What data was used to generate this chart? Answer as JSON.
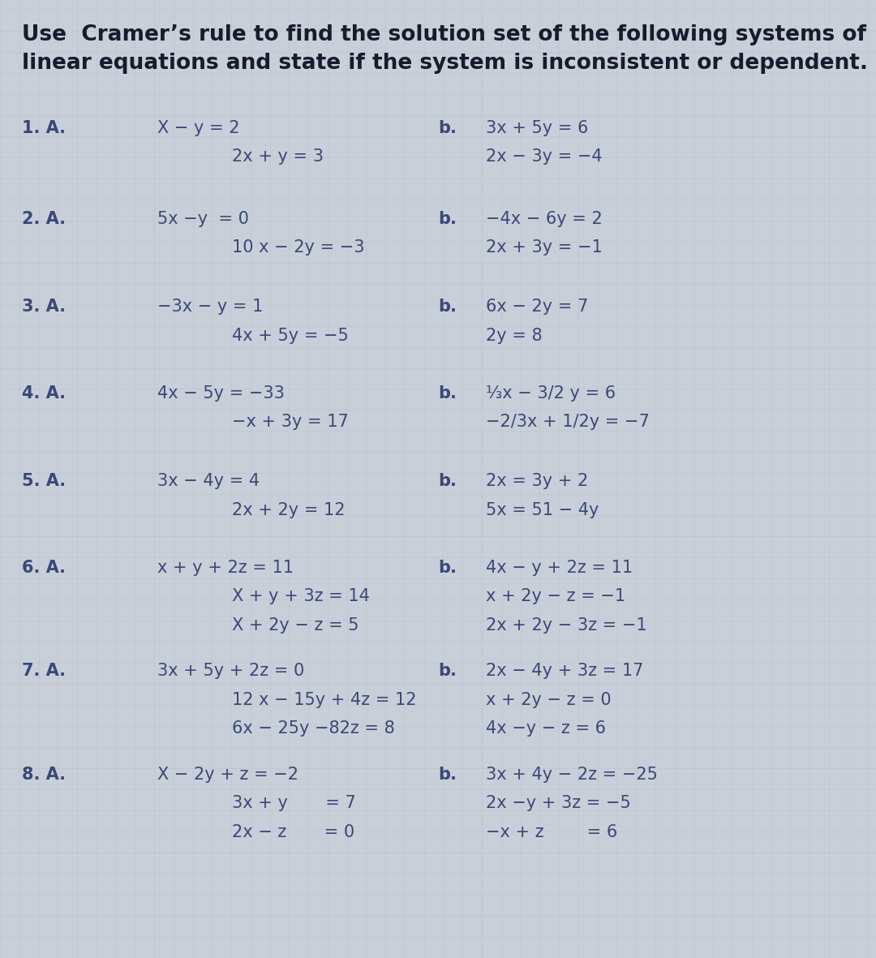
{
  "title_line1": "Use  Cramer’s rule to find the solution set of the following systems of",
  "title_line2": "linear equations and state if the system is inconsistent or dependent.",
  "background_color": "#c8cfd8",
  "grid_color": "#b8bfc8",
  "text_color": "#3a4878",
  "title_color": "#1a1a2e",
  "font_size_title": 19,
  "font_size_body": 15,
  "problems": [
    {
      "number": "1. A.",
      "left_lines": [
        "X − y = 2",
        "2x + y = 3"
      ],
      "right_label": "b.",
      "right_lines": [
        "3x + 5y = 6",
        "2x − 3y = −4"
      ]
    },
    {
      "number": "2. A.",
      "left_lines": [
        "5x −y  = 0",
        "10 x − 2y = −3"
      ],
      "right_label": "b.",
      "right_lines": [
        "−4x − 6y = 2",
        "2x + 3y = −1"
      ]
    },
    {
      "number": "3. A.",
      "left_lines": [
        "−3x − y = 1",
        "4x + 5y = −5"
      ],
      "right_label": "b.",
      "right_lines": [
        "6x − 2y = 7",
        "2y = 8"
      ]
    },
    {
      "number": "4. A.",
      "left_lines": [
        "4x − 5y = −33",
        "−x + 3y = 17"
      ],
      "right_label": "b.",
      "right_lines": [
        "⅓x − 3/2 y = 6",
        "−2/3x + 1/2y = −7"
      ]
    },
    {
      "number": "5. A.",
      "left_lines": [
        "3x − 4y = 4",
        "2x + 2y = 12"
      ],
      "right_label": "b.",
      "right_lines": [
        "2x = 3y + 2",
        "5x = 51 − 4y"
      ]
    },
    {
      "number": "6. A.",
      "left_lines": [
        "x + y + 2z = 11",
        "X + y + 3z = 14",
        "X + 2y − z = 5"
      ],
      "right_label": "b.",
      "right_lines": [
        "4x − y + 2z = 11",
        "x + 2y − z = −1",
        "2x + 2y − 3z = −1"
      ]
    },
    {
      "number": "7. A.",
      "left_lines": [
        "3x + 5y + 2z = 0",
        "12 x − 15y + 4z = 12",
        "6x − 25y −82z = 8"
      ],
      "right_label": "b.",
      "right_lines": [
        "2x − 4y + 3z = 17",
        "x + 2y − z = 0",
        "4x −y − z = 6"
      ]
    },
    {
      "number": "8. A.",
      "left_lines": [
        "X − 2y + z = −2",
        "3x + y       = 7",
        "2x − z       = 0"
      ],
      "right_label": "b.",
      "right_lines": [
        "3x + 4y − 2z = −25",
        "2x −y + 3z = −5",
        "−x + z        = 6"
      ]
    }
  ]
}
